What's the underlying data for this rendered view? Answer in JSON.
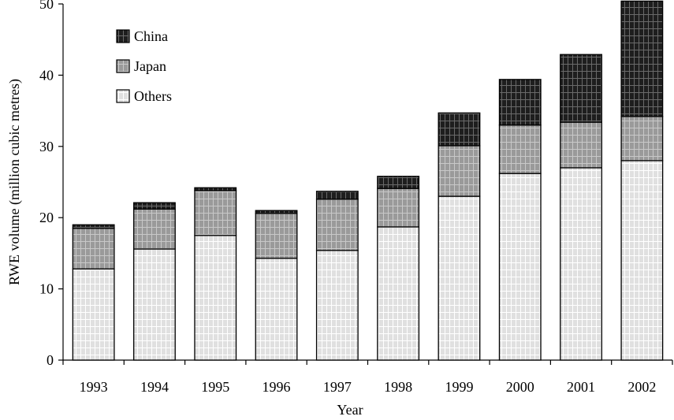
{
  "chart_data": {
    "type": "bar",
    "stacked": true,
    "title": "",
    "xlabel": "Year",
    "ylabel": "RWE volume (million cubic metres)",
    "categories": [
      "1993",
      "1994",
      "1995",
      "1996",
      "1997",
      "1998",
      "1999",
      "2000",
      "2001",
      "2002"
    ],
    "ylim": [
      0,
      50
    ],
    "yticks": [
      0,
      10,
      20,
      30,
      40,
      50
    ],
    "grid": false,
    "legend_position": "top-left",
    "series": [
      {
        "name": "Others",
        "color": "#e0e0e0",
        "values": [
          12.8,
          15.6,
          17.5,
          14.3,
          15.4,
          18.7,
          23.0,
          26.2,
          27.0,
          28.0
        ]
      },
      {
        "name": "Japan",
        "color": "#9a9a9a",
        "values": [
          5.7,
          5.6,
          6.3,
          6.3,
          7.2,
          5.4,
          7.1,
          6.8,
          6.4,
          6.2
        ]
      },
      {
        "name": "China",
        "color": "#1e1e1e",
        "values": [
          0.5,
          0.9,
          0.4,
          0.4,
          1.1,
          1.7,
          4.6,
          6.4,
          9.5,
          16.2
        ]
      }
    ]
  }
}
